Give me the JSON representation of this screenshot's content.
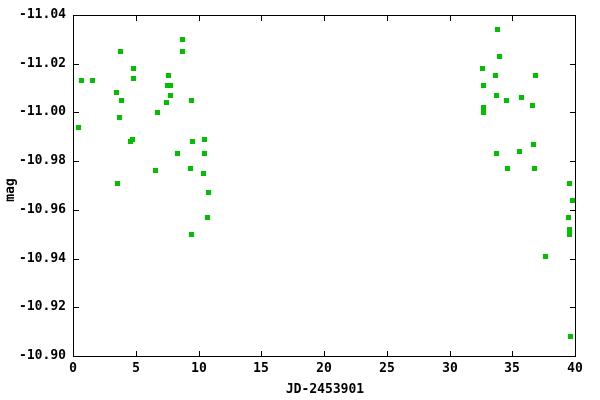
{
  "chart_data": {
    "type": "scatter",
    "title": "",
    "xlabel": "JD-2453901",
    "ylabel": "mag",
    "x_min": 0,
    "x_max": 40,
    "y_axis_top": -11.04,
    "y_axis_bottom": -10.9,
    "y_axis_inverted_magnitude_scale": true,
    "grid": false,
    "legend_position": "none",
    "marker": "filled-square",
    "marker_size_px": 5,
    "marker_color": "#00C000",
    "axis_color": "#000000",
    "background_color": "#FFFFFF",
    "x_tick_values": [
      0,
      5,
      10,
      15,
      20,
      25,
      30,
      35,
      40
    ],
    "x_tick_labels": [
      "0",
      "5",
      "10",
      "15",
      "20",
      "25",
      "30",
      "35",
      "40"
    ],
    "y_tick_values": [
      -11.04,
      -11.02,
      -11.0,
      -10.98,
      -10.96,
      -10.94,
      -10.92,
      -10.9
    ],
    "y_tick_labels": [
      "-11.04",
      "-11.02",
      "-11.00",
      "-10.98",
      "-10.96",
      "-10.94",
      "-10.92",
      "-10.90"
    ],
    "points": [
      [
        0.4,
        -10.994
      ],
      [
        0.69,
        -11.013
      ],
      [
        1.52,
        -11.013
      ],
      [
        3.47,
        -11.008
      ],
      [
        3.52,
        -10.971
      ],
      [
        3.68,
        -10.998
      ],
      [
        3.81,
        -11.025
      ],
      [
        3.87,
        -11.005
      ],
      [
        4.57,
        -10.988
      ],
      [
        4.77,
        -10.989
      ],
      [
        4.81,
        -11.018
      ],
      [
        4.81,
        -11.014
      ],
      [
        6.59,
        -10.976
      ],
      [
        6.73,
        -11.0
      ],
      [
        7.49,
        -11.004
      ],
      [
        7.52,
        -11.011
      ],
      [
        7.57,
        -11.015
      ],
      [
        7.76,
        -11.007
      ],
      [
        7.78,
        -11.011
      ],
      [
        8.36,
        -10.983
      ],
      [
        8.76,
        -11.03
      ],
      [
        8.76,
        -11.025
      ],
      [
        9.37,
        -10.977
      ],
      [
        9.43,
        -11.005
      ],
      [
        9.43,
        -10.95
      ],
      [
        9.56,
        -10.988
      ],
      [
        10.43,
        -10.975
      ],
      [
        10.45,
        -10.989
      ],
      [
        10.49,
        -10.983
      ],
      [
        10.75,
        -10.957
      ],
      [
        10.8,
        -10.967
      ],
      [
        32.59,
        -11.018
      ],
      [
        32.72,
        -11.011
      ],
      [
        32.72,
        -11.002
      ],
      [
        32.72,
        -11.0
      ],
      [
        33.65,
        -11.015
      ],
      [
        33.73,
        -11.007
      ],
      [
        33.73,
        -10.983
      ],
      [
        33.8,
        -11.034
      ],
      [
        33.97,
        -11.023
      ],
      [
        34.58,
        -11.005
      ],
      [
        34.66,
        -10.977
      ],
      [
        35.56,
        -10.984
      ],
      [
        35.72,
        -11.006
      ],
      [
        36.61,
        -11.003
      ],
      [
        36.7,
        -10.987
      ],
      [
        36.78,
        -10.977
      ],
      [
        36.83,
        -11.015
      ],
      [
        37.68,
        -10.941
      ],
      [
        39.52,
        -10.957
      ],
      [
        39.6,
        -10.971
      ],
      [
        39.6,
        -10.952
      ],
      [
        39.6,
        -10.95
      ],
      [
        39.79,
        -10.964
      ],
      [
        39.62,
        -10.908
      ]
    ]
  }
}
